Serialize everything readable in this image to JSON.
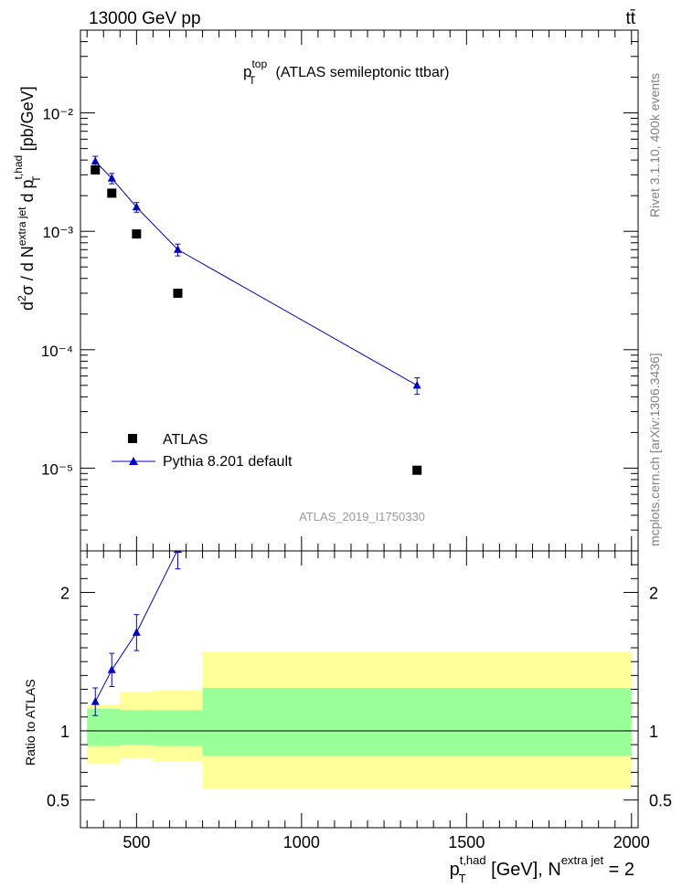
{
  "header": {
    "energy_label": "13000 GeV pp",
    "process_label": "tt̄"
  },
  "side_labels": {
    "rivet": "Rivet 3.1.10,  400k events",
    "source": "mcplots.cern.ch [arXiv:1306.3436]"
  },
  "chart_data": [
    {
      "type": "scatter",
      "title_main": "p",
      "title_sup": "top",
      "title_sub": "T",
      "title_rest": "(ATLAS semileptonic ttbar)",
      "ylabel": "d²σ / d N^extra jet d p_T^t,had [pb/GeV]",
      "yscale": "log",
      "ylim": [
        2e-06,
        0.05
      ],
      "xlim": [
        330,
        2020
      ],
      "y_tick_labels": [
        "10⁻²",
        "10⁻³",
        "10⁻⁴",
        "10⁻⁵"
      ],
      "analysis_id": "ATLAS_2019_I1750330",
      "legend": [
        {
          "label": "ATLAS",
          "color": "#000000",
          "marker": "square"
        },
        {
          "label": "Pythia 8.201 default",
          "color": "#0000cc",
          "marker": "triangle"
        }
      ],
      "series": [
        {
          "name": "ATLAS",
          "x": [
            375,
            425,
            500,
            625,
            1350
          ],
          "y": [
            0.0033,
            0.0021,
            0.00095,
            0.0003,
            9.6e-06
          ]
        },
        {
          "name": "Pythia 8.201 default",
          "x": [
            375,
            425,
            500,
            625,
            1350
          ],
          "y": [
            0.0039,
            0.0028,
            0.0016,
            0.0007,
            5e-05
          ],
          "err": [
            0.0004,
            0.00028,
            0.00015,
            8e-05,
            8e-06
          ]
        }
      ]
    },
    {
      "type": "scatter",
      "ylabel": "Ratio to ATLAS",
      "xlabel": "p_T^t,had [GeV], N^extra jet = 2",
      "ylim": [
        0.3,
        2.3
      ],
      "xlim": [
        330,
        2020
      ],
      "x_ticks": [
        500,
        1000,
        1500,
        2000
      ],
      "x_tick_labels": [
        "500",
        "1000",
        "1500",
        "2000"
      ],
      "y_ticks": [
        0.5,
        1,
        2
      ],
      "y_tick_labels": [
        "0.5",
        "1",
        "2"
      ],
      "bands": [
        {
          "x0": 350,
          "x1": 400,
          "g_lo": 0.89,
          "g_hi": 1.16,
          "y_lo": 0.76,
          "y_hi": 1.19
        },
        {
          "x0": 400,
          "x1": 450,
          "g_lo": 0.89,
          "g_hi": 1.16,
          "y_lo": 0.76,
          "y_hi": 1.19
        },
        {
          "x0": 450,
          "x1": 550,
          "g_lo": 0.9,
          "g_hi": 1.15,
          "y_lo": 0.8,
          "y_hi": 1.28
        },
        {
          "x0": 550,
          "x1": 700,
          "g_lo": 0.89,
          "g_hi": 1.15,
          "y_lo": 0.78,
          "y_hi": 1.29
        },
        {
          "x0": 700,
          "x1": 2000,
          "g_lo": 0.82,
          "g_hi": 1.31,
          "y_lo": 0.58,
          "y_hi": 1.57
        }
      ],
      "ratio_series": {
        "name": "Pythia 8.201 default",
        "x": [
          375,
          425,
          500,
          625
        ],
        "y": [
          1.21,
          1.44,
          1.71,
          2.31
        ],
        "err": [
          0.1,
          0.12,
          0.13,
          0.14
        ]
      }
    }
  ]
}
